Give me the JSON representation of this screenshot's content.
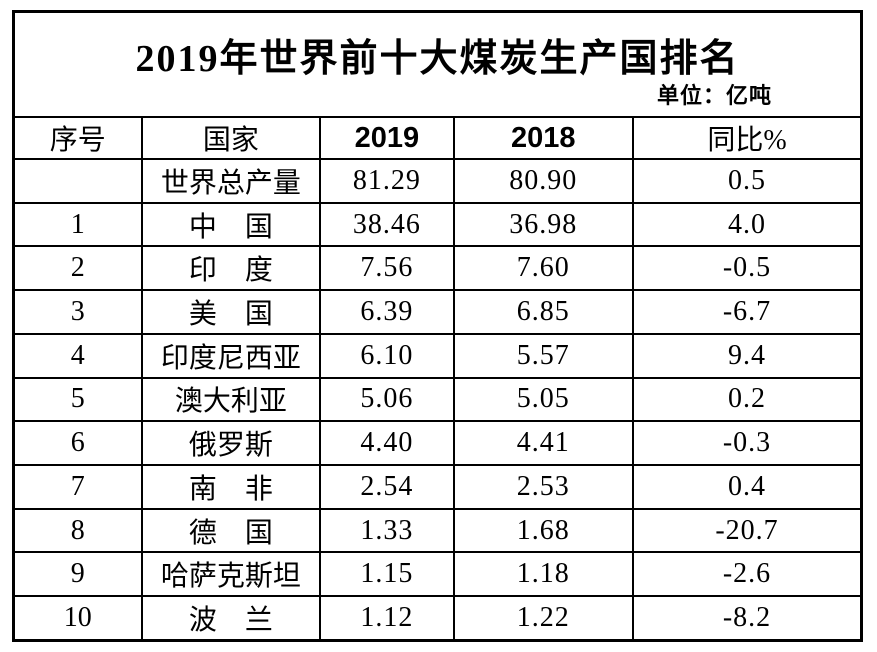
{
  "title": "2019年世界前十大煤炭生产国排名",
  "unit_label": "单位：亿吨",
  "colors": {
    "background": "#ffffff",
    "text": "#000000",
    "border": "#000000"
  },
  "table": {
    "headers": [
      "序号",
      "国家",
      "2019",
      "2018",
      "同比%"
    ],
    "rows": [
      {
        "no": "",
        "country": "世界总产量",
        "y2019": "81.29",
        "y2018": "80.90",
        "yoy": "0.5"
      },
      {
        "no": "1",
        "country": "中　国",
        "y2019": "38.46",
        "y2018": "36.98",
        "yoy": "4.0"
      },
      {
        "no": "2",
        "country": "印　度",
        "y2019": "7.56",
        "y2018": "7.60",
        "yoy": "-0.5"
      },
      {
        "no": "3",
        "country": "美　国",
        "y2019": "6.39",
        "y2018": "6.85",
        "yoy": "-6.7"
      },
      {
        "no": "4",
        "country": "印度尼西亚",
        "y2019": "6.10",
        "y2018": "5.57",
        "yoy": "9.4"
      },
      {
        "no": "5",
        "country": "澳大利亚",
        "y2019": "5.06",
        "y2018": "5.05",
        "yoy": "0.2"
      },
      {
        "no": "6",
        "country": "俄罗斯",
        "y2019": "4.40",
        "y2018": "4.41",
        "yoy": "-0.3"
      },
      {
        "no": "7",
        "country": "南　非",
        "y2019": "2.54",
        "y2018": "2.53",
        "yoy": "0.4"
      },
      {
        "no": "8",
        "country": "德　国",
        "y2019": "1.33",
        "y2018": "1.68",
        "yoy": "-20.7"
      },
      {
        "no": "9",
        "country": "哈萨克斯坦",
        "y2019": "1.15",
        "y2018": "1.18",
        "yoy": "-2.6"
      },
      {
        "no": "10",
        "country": "波　兰",
        "y2019": "1.12",
        "y2018": "1.22",
        "yoy": "-8.2"
      }
    ]
  }
}
